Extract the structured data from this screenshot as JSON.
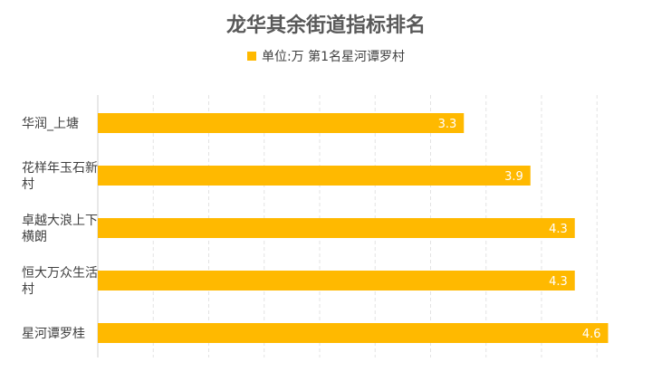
{
  "chart_data": {
    "type": "bar",
    "orientation": "horizontal",
    "title": "龙华其余街道指标排名",
    "series": [
      {
        "name": "单位:万 第1名星河谭罗村",
        "color": "#FFB900"
      }
    ],
    "categories": [
      [
        "华润_上塘"
      ],
      [
        "花样年玉石新",
        "村"
      ],
      [
        "卓越大浪上下",
        "横朗"
      ],
      [
        "恒大万众生活",
        "村"
      ],
      [
        "星河谭罗桂"
      ]
    ],
    "values": [
      3.3,
      3.9,
      4.3,
      4.3,
      4.6
    ],
    "data_labels": [
      "3.3",
      "3.9",
      "4.3",
      "4.3",
      "4.6"
    ],
    "xlim": [
      0,
      5
    ],
    "grid": true,
    "legend_position": "top"
  }
}
